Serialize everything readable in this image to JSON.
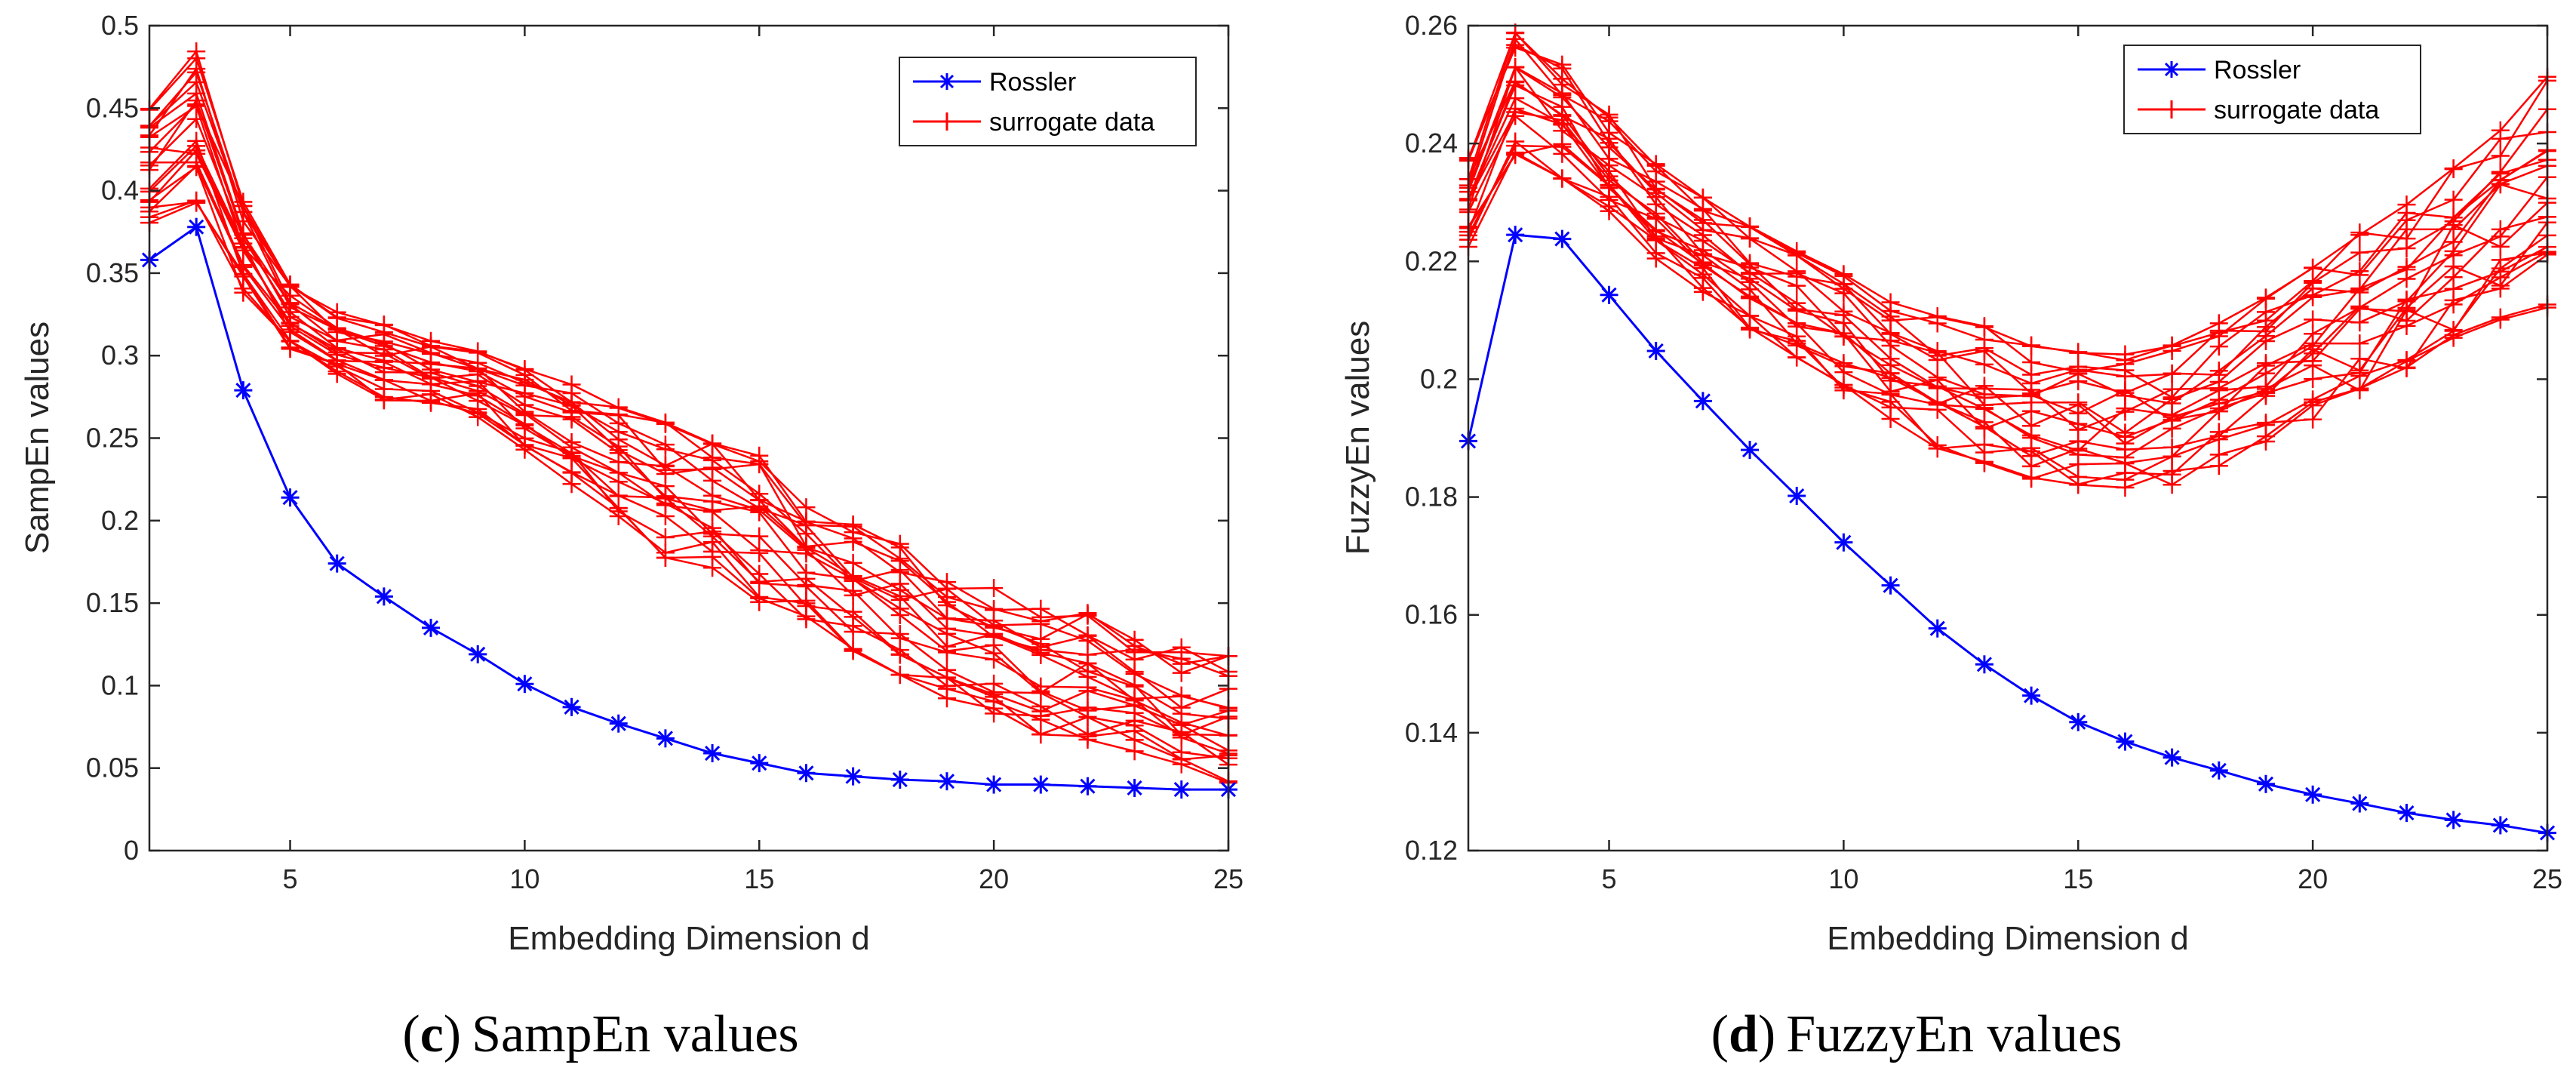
{
  "chart_data": [
    {
      "type": "line",
      "caption": {
        "letter": "c",
        "text": "SampEn values",
        "open": "(",
        "close": ")"
      },
      "xlabel": "Embedding Dimension d",
      "ylabel": "SampEn values",
      "xlim": [
        2,
        25
      ],
      "ylim": [
        0,
        0.5
      ],
      "xticks": [
        5,
        10,
        15,
        20,
        25
      ],
      "yticks": [
        0,
        0.05,
        0.1,
        0.15,
        0.2,
        0.25,
        0.3,
        0.35,
        0.4,
        0.45,
        0.5
      ],
      "ytick_labels": [
        "0",
        "0.05",
        "0.1",
        "0.15",
        "0.2",
        "0.25",
        "0.3",
        "0.35",
        "0.4",
        "0.45",
        "0.5"
      ],
      "x": [
        2,
        3,
        4,
        5,
        6,
        7,
        8,
        9,
        10,
        11,
        12,
        13,
        14,
        15,
        16,
        17,
        18,
        19,
        20,
        21,
        22,
        23,
        24,
        25
      ],
      "legend": {
        "location": "top-right",
        "entries": [
          "Rossler",
          "surrogate data"
        ]
      },
      "series": [
        {
          "name": "Rossler",
          "color": "#0000ff",
          "marker": "asterisk",
          "values": [
            0.358,
            0.378,
            0.279,
            0.214,
            0.174,
            0.154,
            0.135,
            0.119,
            0.101,
            0.087,
            0.077,
            0.068,
            0.059,
            0.053,
            0.047,
            0.045,
            0.043,
            0.042,
            0.04,
            0.04,
            0.039,
            0.038,
            0.037,
            0.037
          ]
        },
        {
          "name": "surrogate data",
          "color": "#ff0000",
          "marker": "plus",
          "band": {
            "low": [
              0.38,
              0.392,
              0.338,
              0.301,
              0.288,
              0.272,
              0.27,
              0.262,
              0.242,
              0.222,
              0.202,
              0.176,
              0.17,
              0.15,
              0.14,
              0.12,
              0.104,
              0.09,
              0.08,
              0.07,
              0.064,
              0.06,
              0.046,
              0.04
            ],
            "high": [
              0.452,
              0.49,
              0.396,
              0.345,
              0.327,
              0.32,
              0.31,
              0.304,
              0.293,
              0.283,
              0.27,
              0.26,
              0.248,
              0.24,
              0.21,
              0.198,
              0.188,
              0.17,
              0.16,
              0.148,
              0.144,
              0.132,
              0.124,
              0.118
            ]
          },
          "count": 20
        }
      ]
    },
    {
      "type": "line",
      "caption": {
        "letter": "d",
        "text": "FuzzyEn values",
        "open": "(",
        "close": ")"
      },
      "xlabel": "Embedding Dimension d",
      "ylabel": "FuzzyEn values",
      "xlim": [
        2,
        25
      ],
      "ylim": [
        0.12,
        0.26
      ],
      "xticks": [
        5,
        10,
        15,
        20,
        25
      ],
      "yticks": [
        0.12,
        0.14,
        0.16,
        0.18,
        0.2,
        0.22,
        0.24,
        0.26
      ],
      "ytick_labels": [
        "0.12",
        "0.14",
        "0.16",
        "0.18",
        "0.2",
        "0.22",
        "0.24",
        "0.26"
      ],
      "x": [
        2,
        3,
        4,
        5,
        6,
        7,
        8,
        9,
        10,
        11,
        12,
        13,
        14,
        15,
        16,
        17,
        18,
        19,
        20,
        21,
        22,
        23,
        24,
        25
      ],
      "legend": {
        "location": "top-right",
        "entries": [
          "Rossler",
          "surrogate data"
        ]
      },
      "series": [
        {
          "name": "Rossler",
          "color": "#0000ff",
          "marker": "asterisk",
          "values": [
            0.1895,
            0.2245,
            0.2238,
            0.2143,
            0.2048,
            0.1963,
            0.188,
            0.1802,
            0.1723,
            0.165,
            0.1577,
            0.1516,
            0.1463,
            0.1418,
            0.1385,
            0.1358,
            0.1336,
            0.1313,
            0.1295,
            0.128,
            0.1264,
            0.1252,
            0.1243,
            0.123
          ]
        },
        {
          "name": "surrogate data",
          "color": "#ff0000",
          "marker": "plus",
          "band": {
            "low": [
              0.222,
              0.238,
              0.234,
              0.227,
              0.22,
              0.214,
              0.208,
              0.203,
              0.198,
              0.193,
              0.188,
              0.185,
              0.183,
              0.182,
              0.181,
              0.182,
              0.185,
              0.189,
              0.193,
              0.197,
              0.201,
              0.206,
              0.21,
              0.212
            ],
            "high": [
              0.238,
              0.259,
              0.254,
              0.245,
              0.237,
              0.231,
              0.226,
              0.222,
              0.218,
              0.214,
              0.211,
              0.209,
              0.206,
              0.205,
              0.205,
              0.206,
              0.21,
              0.214,
              0.219,
              0.225,
              0.23,
              0.236,
              0.243,
              0.252
            ]
          },
          "count": 20
        }
      ]
    }
  ]
}
